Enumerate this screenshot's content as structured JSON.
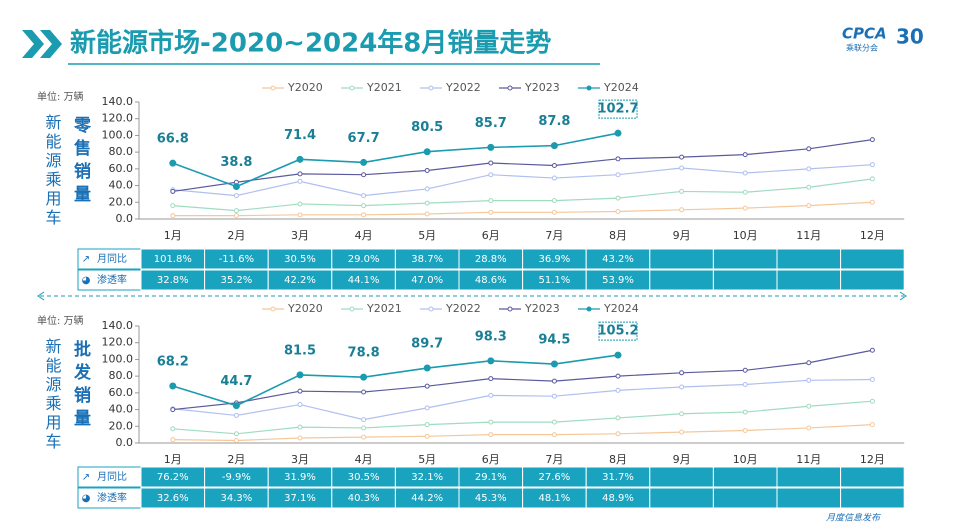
{
  "header": {
    "title": "新能源市场-2020~2024年8月销量走势",
    "logo": "CPCA",
    "logo_sub": "乘联分会",
    "badge": "30"
  },
  "footer": "月度信息发布",
  "chart_data": [
    {
      "type": "line",
      "unit": "单位: 万辆",
      "side_label": "新能源乘用车",
      "title": "零售销量",
      "categories": [
        "1月",
        "2月",
        "3月",
        "4月",
        "5月",
        "6月",
        "7月",
        "8月",
        "9月",
        "10月",
        "11月",
        "12月"
      ],
      "ylim": [
        0,
        140
      ],
      "yticks": [
        {
          "value": 0,
          "label": "0.0"
        },
        {
          "value": 20,
          "label": "20.0"
        },
        {
          "value": 40,
          "label": "40.0"
        },
        {
          "value": 60,
          "label": "60.0"
        },
        {
          "value": 80,
          "label": "80.0"
        },
        {
          "value": 100,
          "label": "100.0"
        },
        {
          "value": 120,
          "label": "120.0"
        },
        {
          "value": 140,
          "label": "140.0"
        }
      ],
      "series": [
        {
          "name": "Y2020",
          "color": "#f5c89a",
          "values": [
            4,
            4,
            5,
            5,
            6,
            8,
            8,
            9,
            11,
            13,
            16,
            20
          ]
        },
        {
          "name": "Y2021",
          "color": "#9fdcc0",
          "values": [
            16,
            10,
            18,
            16,
            19,
            22,
            22,
            25,
            33,
            32,
            38,
            48
          ]
        },
        {
          "name": "Y2022",
          "color": "#b0bff0",
          "values": [
            35,
            28,
            45,
            28,
            36,
            53,
            49,
            53,
            61,
            55,
            60,
            65
          ]
        },
        {
          "name": "Y2023",
          "color": "#5b5a9e",
          "values": [
            33,
            44,
            54,
            53,
            58,
            67,
            64,
            72,
            74,
            77,
            84,
            95
          ]
        },
        {
          "name": "Y2024",
          "color": "#1a9bb0",
          "values": [
            66.8,
            38.8,
            71.4,
            67.7,
            80.5,
            85.7,
            87.8,
            102.7,
            null,
            null,
            null,
            null
          ],
          "labels": true
        }
      ],
      "table": [
        {
          "label": "月同比",
          "values": [
            "101.8%",
            "-11.6%",
            "30.5%",
            "29.0%",
            "38.7%",
            "28.8%",
            "36.9%",
            "43.2%"
          ]
        },
        {
          "label": "渗透率",
          "values": [
            "32.8%",
            "35.2%",
            "42.2%",
            "44.1%",
            "47.0%",
            "48.6%",
            "51.1%",
            "53.9%"
          ]
        }
      ]
    },
    {
      "type": "line",
      "unit": "单位: 万辆",
      "side_label": "新能源乘用车",
      "title": "批发销量",
      "categories": [
        "1月",
        "2月",
        "3月",
        "4月",
        "5月",
        "6月",
        "7月",
        "8月",
        "9月",
        "10月",
        "11月",
        "12月"
      ],
      "ylim": [
        0,
        140
      ],
      "yticks": [
        {
          "value": 0,
          "label": "0.0"
        },
        {
          "value": 20,
          "label": "20.0"
        },
        {
          "value": 40,
          "label": "40.0"
        },
        {
          "value": 60,
          "label": "60.0"
        },
        {
          "value": 80,
          "label": "80.0"
        },
        {
          "value": 100,
          "label": "100.0"
        },
        {
          "value": 120,
          "label": "120.0"
        },
        {
          "value": 140,
          "label": "140.0"
        }
      ],
      "series": [
        {
          "name": "Y2020",
          "color": "#f5c89a",
          "values": [
            4,
            3,
            6,
            7,
            8,
            10,
            10,
            11,
            13,
            15,
            18,
            22
          ]
        },
        {
          "name": "Y2021",
          "color": "#9fdcc0",
          "values": [
            17,
            11,
            19,
            18,
            22,
            25,
            25,
            30,
            35,
            37,
            44,
            50
          ]
        },
        {
          "name": "Y2022",
          "color": "#b0bff0",
          "values": [
            41,
            33,
            46,
            28,
            42,
            57,
            56,
            63,
            67,
            70,
            75,
            76
          ]
        },
        {
          "name": "Y2023",
          "color": "#5b5a9e",
          "values": [
            40,
            48,
            62,
            61,
            68,
            77,
            74,
            80,
            84,
            87,
            96,
            111
          ]
        },
        {
          "name": "Y2024",
          "color": "#1a9bb0",
          "values": [
            68.2,
            44.7,
            81.5,
            78.8,
            89.7,
            98.3,
            94.5,
            105.2,
            null,
            null,
            null,
            null
          ],
          "labels": true
        }
      ],
      "table": [
        {
          "label": "月同比",
          "values": [
            "76.2%",
            "-9.9%",
            "31.9%",
            "30.5%",
            "32.1%",
            "29.1%",
            "27.6%",
            "31.7%"
          ]
        },
        {
          "label": "渗透率",
          "values": [
            "32.6%",
            "34.3%",
            "37.1%",
            "40.3%",
            "44.2%",
            "45.3%",
            "48.1%",
            "48.9%"
          ]
        }
      ]
    }
  ]
}
